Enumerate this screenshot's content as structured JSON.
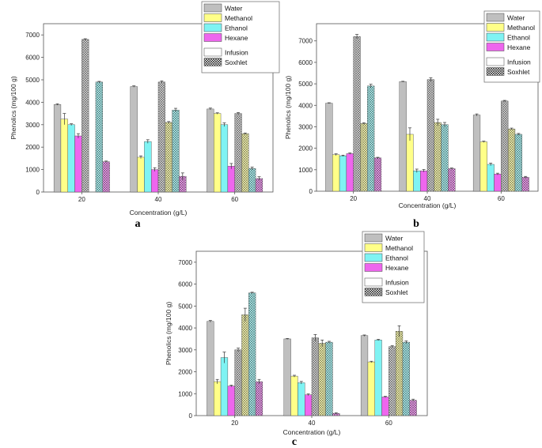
{
  "colors": {
    "Water": "#bfbfbf",
    "Methanol": "#ffff88",
    "Ethanol": "#7ff3f3",
    "Hexane": "#ee66ee"
  },
  "legend": {
    "solvents": [
      "Water",
      "Methanol",
      "Ethanol",
      "Hexane"
    ],
    "methods": [
      "Infusion",
      "Soxhlet"
    ]
  },
  "chart_data": [
    {
      "panel_label": "a",
      "type": "bar",
      "xlabel": "Concentration (g/L)",
      "ylabel": "Phenolics (mg/100 g)",
      "categories": [
        "20",
        "40",
        "60"
      ],
      "ylim": [
        0,
        7500
      ],
      "yticks": [
        "0",
        "1000",
        "2000",
        "3000",
        "4000",
        "5000",
        "6000",
        "7000"
      ],
      "series": [
        {
          "name": "Water Infusion",
          "solvent": "Water",
          "method": "Infusion",
          "values": [
            3900,
            4700,
            3700
          ],
          "errors": [
            30,
            30,
            40
          ]
        },
        {
          "name": "Methanol Infusion",
          "solvent": "Methanol",
          "method": "Infusion",
          "values": [
            3250,
            1550,
            3500
          ],
          "errors": [
            250,
            60,
            30
          ]
        },
        {
          "name": "Ethanol Infusion",
          "solvent": "Ethanol",
          "method": "Infusion",
          "values": [
            3000,
            2250,
            3000
          ],
          "errors": [
            40,
            80,
            80
          ]
        },
        {
          "name": "Hexane Infusion",
          "solvent": "Hexane",
          "method": "Infusion",
          "values": [
            2500,
            1000,
            1150
          ],
          "errors": [
            100,
            80,
            120
          ]
        },
        {
          "name": "Water Soxhlet",
          "solvent": "Water",
          "method": "Soxhlet",
          "values": [
            6800,
            4900,
            3500
          ],
          "errors": [
            30,
            50,
            40
          ]
        },
        {
          "name": "Methanol Soxhlet",
          "solvent": "Methanol",
          "method": "Soxhlet",
          "values": [
            0,
            3100,
            2600
          ],
          "errors": [
            0,
            40,
            30
          ]
        },
        {
          "name": "Ethanol Soxhlet",
          "solvent": "Ethanol",
          "method": "Soxhlet",
          "values": [
            4900,
            3650,
            1050
          ],
          "errors": [
            30,
            80,
            60
          ]
        },
        {
          "name": "Hexane Soxhlet",
          "solvent": "Hexane",
          "method": "Soxhlet",
          "values": [
            1350,
            700,
            600
          ],
          "errors": [
            30,
            150,
            80
          ]
        }
      ]
    },
    {
      "panel_label": "b",
      "type": "bar",
      "xlabel": "Concentration (g/L)",
      "ylabel": "Phenolics (mg/100 g)",
      "categories": [
        "20",
        "40",
        "60"
      ],
      "ylim": [
        0,
        7800
      ],
      "yticks": [
        "0",
        "1000",
        "2000",
        "3000",
        "4000",
        "5000",
        "6000",
        "7000"
      ],
      "series": [
        {
          "name": "Water Infusion",
          "solvent": "Water",
          "method": "Infusion",
          "values": [
            4100,
            5100,
            3550
          ],
          "errors": [
            20,
            20,
            50
          ]
        },
        {
          "name": "Methanol Infusion",
          "solvent": "Methanol",
          "method": "Infusion",
          "values": [
            1700,
            2650,
            2300
          ],
          "errors": [
            40,
            300,
            30
          ]
        },
        {
          "name": "Ethanol Infusion",
          "solvent": "Ethanol",
          "method": "Infusion",
          "values": [
            1650,
            950,
            1250
          ],
          "errors": [
            30,
            80,
            60
          ]
        },
        {
          "name": "Hexane Infusion",
          "solvent": "Hexane",
          "method": "Infusion",
          "values": [
            1750,
            950,
            800
          ],
          "errors": [
            30,
            60,
            40
          ]
        },
        {
          "name": "Water Soxhlet",
          "solvent": "Water",
          "method": "Soxhlet",
          "values": [
            7200,
            5200,
            4200
          ],
          "errors": [
            100,
            80,
            30
          ]
        },
        {
          "name": "Methanol Soxhlet",
          "solvent": "Methanol",
          "method": "Soxhlet",
          "values": [
            3150,
            3200,
            2900
          ],
          "errors": [
            40,
            150,
            40
          ]
        },
        {
          "name": "Ethanol Soxhlet",
          "solvent": "Ethanol",
          "method": "Soxhlet",
          "values": [
            4900,
            3100,
            2650
          ],
          "errors": [
            80,
            100,
            40
          ]
        },
        {
          "name": "Hexane Soxhlet",
          "solvent": "Hexane",
          "method": "Soxhlet",
          "values": [
            1550,
            1050,
            650
          ],
          "errors": [
            30,
            30,
            40
          ]
        }
      ]
    },
    {
      "panel_label": "c",
      "type": "bar",
      "xlabel": "Concentration (g/L)",
      "ylabel": "Phenolics (mg/100 g)",
      "categories": [
        "20",
        "40",
        "60"
      ],
      "ylim": [
        0,
        7500
      ],
      "yticks": [
        "0",
        "1000",
        "2000",
        "3000",
        "4000",
        "5000",
        "6000",
        "7000"
      ],
      "series": [
        {
          "name": "Water Infusion",
          "solvent": "Water",
          "method": "Infusion",
          "values": [
            4300,
            3500,
            3650
          ],
          "errors": [
            40,
            20,
            30
          ]
        },
        {
          "name": "Methanol Infusion",
          "solvent": "Methanol",
          "method": "Infusion",
          "values": [
            1550,
            1800,
            2450
          ],
          "errors": [
            100,
            40,
            30
          ]
        },
        {
          "name": "Ethanol Infusion",
          "solvent": "Ethanol",
          "method": "Infusion",
          "values": [
            2650,
            1500,
            3450
          ],
          "errors": [
            250,
            60,
            30
          ]
        },
        {
          "name": "Hexane Infusion",
          "solvent": "Hexane",
          "method": "Infusion",
          "values": [
            1350,
            950,
            850
          ],
          "errors": [
            40,
            40,
            30
          ]
        },
        {
          "name": "Water Soxhlet",
          "solvent": "Water",
          "method": "Soxhlet",
          "values": [
            3000,
            3550,
            3150
          ],
          "errors": [
            80,
            150,
            40
          ]
        },
        {
          "name": "Methanol Soxhlet",
          "solvent": "Methanol",
          "method": "Soxhlet",
          "values": [
            4600,
            3300,
            3850
          ],
          "errors": [
            300,
            150,
            250
          ]
        },
        {
          "name": "Ethanol Soxhlet",
          "solvent": "Ethanol",
          "method": "Soxhlet",
          "values": [
            5600,
            3350,
            3350
          ],
          "errors": [
            30,
            40,
            60
          ]
        },
        {
          "name": "Hexane Soxhlet",
          "solvent": "Hexane",
          "method": "Soxhlet",
          "values": [
            1550,
            100,
            700
          ],
          "errors": [
            100,
            30,
            50
          ]
        }
      ]
    }
  ]
}
